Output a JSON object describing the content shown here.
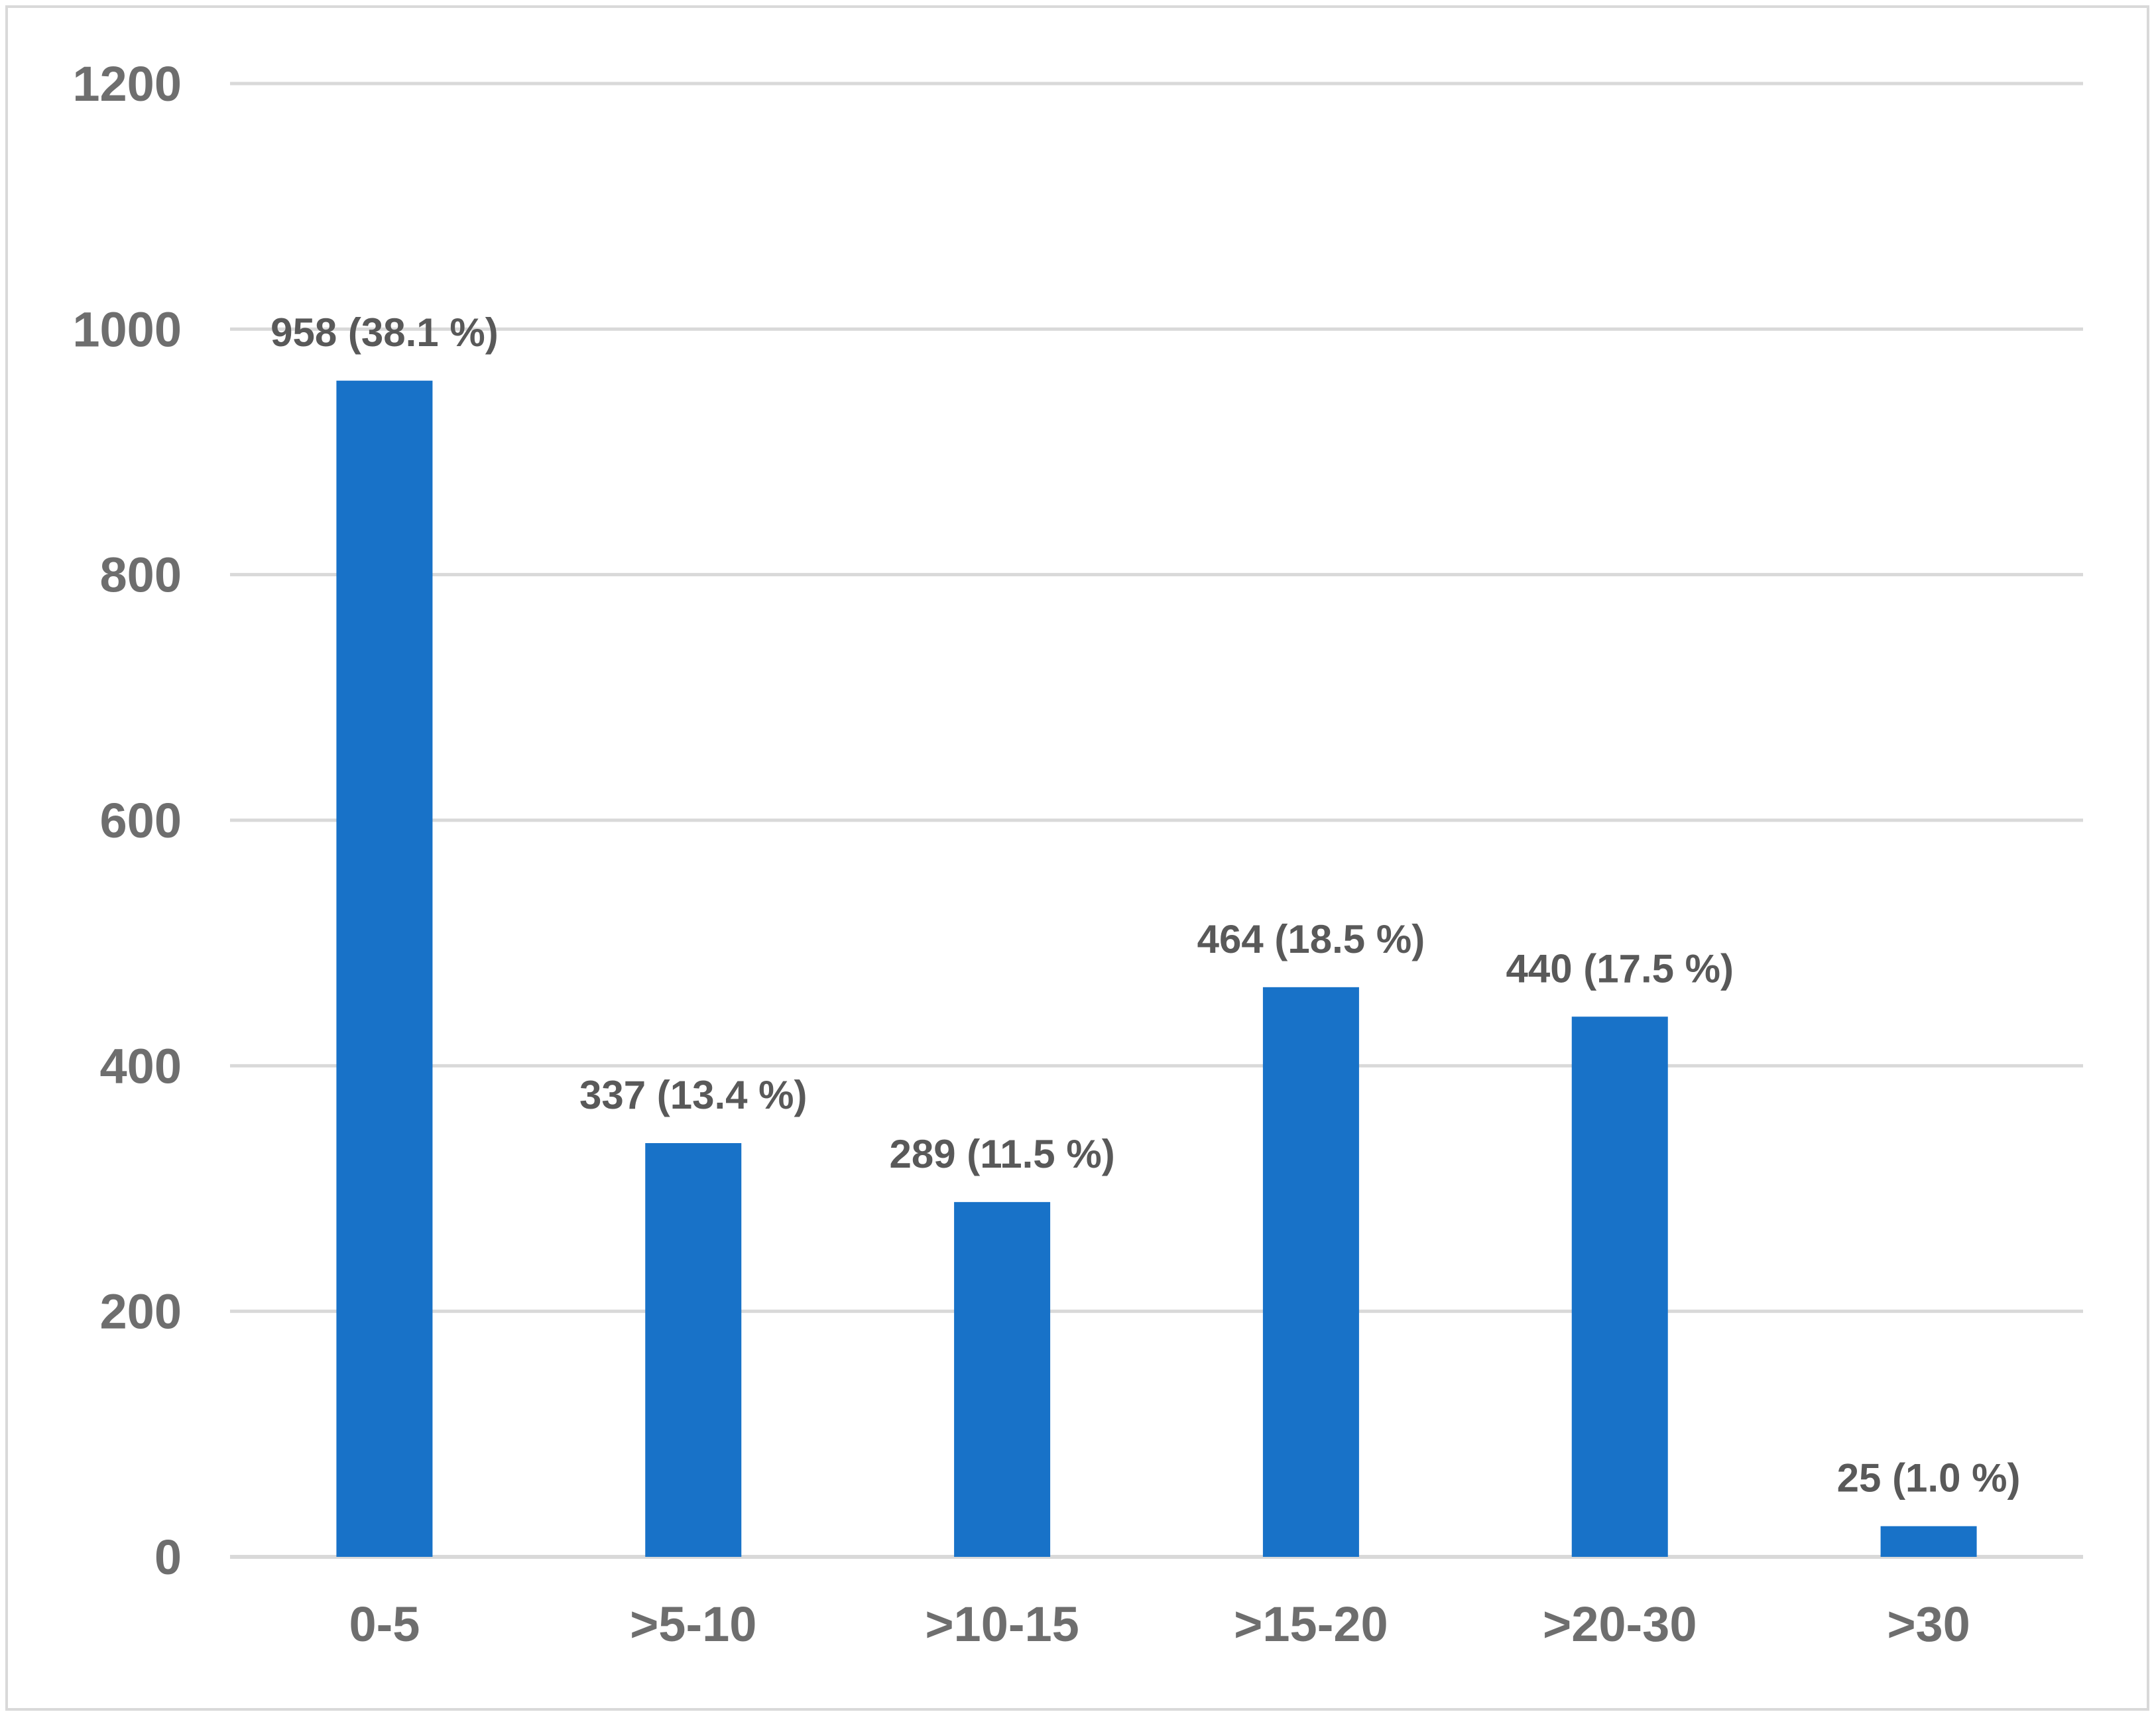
{
  "chart_data": {
    "type": "bar",
    "title": "",
    "xlabel": "",
    "ylabel": "",
    "categories": [
      "0-5",
      ">5-10",
      ">10-15",
      ">15-20",
      ">20-30",
      ">30"
    ],
    "values": [
      958,
      337,
      289,
      464,
      440,
      25
    ],
    "data_labels": [
      "958 (38.1 %)",
      "337 (13.4 %)",
      "289 (11.5 %)",
      "464 (18.5 %)",
      "440 (17.5 %)",
      "25 (1.0 %)"
    ],
    "ylim": [
      0,
      1200
    ],
    "yticks": [
      "0",
      "200",
      "400",
      "600",
      "800",
      "1000",
      "1200"
    ],
    "grid": true,
    "legend": "none",
    "bar_color": "#1872c8",
    "grid_color": "#d9d9d9",
    "text_color": "#6e6e6e"
  }
}
